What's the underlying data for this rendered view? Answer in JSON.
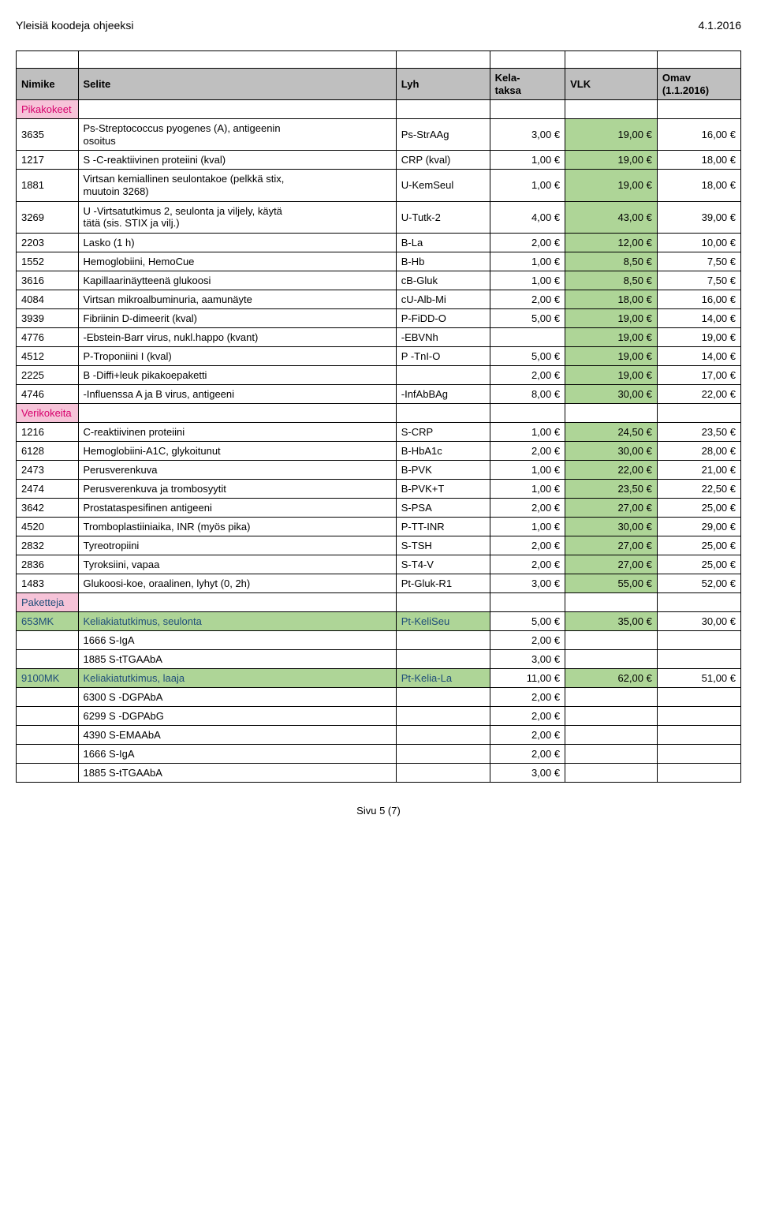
{
  "header": {
    "left": "Yleisiä koodeja ohjeeksi",
    "right": "4.1.2016"
  },
  "thead": {
    "nimike": "Nimike",
    "selite": "Selite",
    "lyh": "Lyh",
    "kela_l1": "Kela-",
    "kela_l2": "taksa",
    "vlk": "VLK",
    "omav_l1": "Omav",
    "omav_l2": "(1.1.2016)"
  },
  "sections": {
    "pikakokeet": "Pikakokeet",
    "verikokeita": "Verikokeita",
    "paketteja": "Paketteja"
  },
  "rows": [
    {
      "code": "3635",
      "name_l1": "Ps-Streptococcus pyogenes (A), antigeenin",
      "name_l2": "osoitus",
      "lyh": "Ps-StrAAg",
      "kela": "3,00 €",
      "vlk": "19,00 €",
      "omav": "16,00 €"
    },
    {
      "code": "1217",
      "name": "S -C-reaktiivinen proteiini (kval)",
      "lyh": "CRP (kval)",
      "kela": "1,00 €",
      "vlk": "19,00 €",
      "omav": "18,00 €"
    },
    {
      "code": "1881",
      "name_l1": "Virtsan kemiallinen seulontakoe (pelkkä stix,",
      "name_l2": "muutoin 3268)",
      "lyh": "U-KemSeul",
      "kela": "1,00 €",
      "vlk": "19,00 €",
      "omav": "18,00 €"
    },
    {
      "code": "3269",
      "name_l1": "U -Virtsatutkimus 2, seulonta ja viljely, käytä",
      "name_l2": "tätä (sis. STIX ja vilj.)",
      "lyh": "U-Tutk-2",
      "kela": "4,00 €",
      "vlk": "43,00 €",
      "omav": "39,00 €"
    },
    {
      "code": "2203",
      "name": "Lasko (1 h)",
      "lyh": "B-La",
      "kela": "2,00 €",
      "vlk": "12,00 €",
      "omav": "10,00 €"
    },
    {
      "code": "1552",
      "name": "Hemoglobiini, HemoCue",
      "lyh": "B-Hb",
      "kela": "1,00 €",
      "vlk": "8,50 €",
      "omav": "7,50 €"
    },
    {
      "code": "3616",
      "name": "Kapillaarinäytteenä glukoosi",
      "lyh": "cB-Gluk",
      "kela": "1,00 €",
      "vlk": "8,50 €",
      "omav": "7,50 €"
    },
    {
      "code": "4084",
      "name": "Virtsan mikroalbuminuria, aamunäyte",
      "lyh": "cU-Alb-Mi",
      "kela": "2,00 €",
      "vlk": "18,00 €",
      "omav": "16,00 €"
    },
    {
      "code": "3939",
      "name": "Fibriinin D-dimeerit (kval)",
      "lyh": "P-FiDD-O",
      "kela": "5,00 €",
      "vlk": "19,00 €",
      "omav": "14,00 €"
    },
    {
      "code": "4776",
      "name": "-Ebstein-Barr virus, nukl.happo (kvant)",
      "lyh": "-EBVNh",
      "kela": "",
      "vlk": "19,00 €",
      "omav": "19,00 €"
    },
    {
      "code": "4512",
      "name": "P-Troponiini I (kval)",
      "lyh": "P -TnI-O",
      "kela": "5,00 €",
      "vlk": "19,00 €",
      "omav": "14,00 €"
    },
    {
      "code": "2225",
      "name": "B -Diffi+leuk pikakoepaketti",
      "lyh": "",
      "kela": "2,00 €",
      "vlk": "19,00 €",
      "omav": "17,00 €"
    },
    {
      "code": "4746",
      "name": "-Influenssa A ja B virus, antigeeni",
      "lyh": "-InfAbBAg",
      "kela": "8,00 €",
      "vlk": "30,00 €",
      "omav": "22,00 €"
    }
  ],
  "rows2": [
    {
      "code": "1216",
      "name": "C-reaktiivinen proteiini",
      "lyh": "S-CRP",
      "kela": "1,00 €",
      "vlk": "24,50 €",
      "omav": "23,50 €"
    },
    {
      "code": "6128",
      "name": "Hemoglobiini-A1C, glykoitunut",
      "lyh": "B-HbA1c",
      "kela": "2,00 €",
      "vlk": "30,00 €",
      "omav": "28,00 €"
    },
    {
      "code": "2473",
      "name": "Perusverenkuva",
      "lyh": "B-PVK",
      "kela": "1,00 €",
      "vlk": "22,00 €",
      "omav": "21,00 €"
    },
    {
      "code": "2474",
      "name": "Perusverenkuva ja trombosyytit",
      "lyh": "B-PVK+T",
      "kela": "1,00 €",
      "vlk": "23,50 €",
      "omav": "22,50 €"
    },
    {
      "code": "3642",
      "name": "Prostataspesifinen antigeeni",
      "lyh": "S-PSA",
      "kela": "2,00 €",
      "vlk": "27,00 €",
      "omav": "25,00 €"
    },
    {
      "code": "4520",
      "name": "Tromboplastiiniaika, INR (myös pika)",
      "lyh": "P-TT-INR",
      "kela": "1,00 €",
      "vlk": "30,00 €",
      "omav": "29,00 €"
    },
    {
      "code": "2832",
      "name": "Tyreotropiini",
      "lyh": "S-TSH",
      "kela": "2,00 €",
      "vlk": "27,00 €",
      "omav": "25,00 €"
    },
    {
      "code": "2836",
      "name": "Tyroksiini, vapaa",
      "lyh": "S-T4-V",
      "kela": "2,00 €",
      "vlk": "27,00 €",
      "omav": "25,00 €"
    },
    {
      "code": "1483",
      "name": "Glukoosi-koe, oraalinen, lyhyt (0, 2h)",
      "lyh": "Pt-Gluk-R1",
      "kela": "3,00 €",
      "vlk": "55,00 €",
      "omav": "52,00 €"
    }
  ],
  "pkg1": {
    "code": "653MK",
    "name": "Keliakiatutkimus, seulonta",
    "lyh": "Pt-KeliSeu",
    "kela": "5,00 €",
    "vlk": "35,00 €",
    "omav": "30,00 €"
  },
  "pkg1_sub": [
    {
      "name": "1666 S-IgA",
      "kela": "2,00 €"
    },
    {
      "name": "1885 S-tTGAAbA",
      "kela": "3,00 €"
    }
  ],
  "pkg2": {
    "code": "9100MK",
    "name": "Keliakiatutkimus, laaja",
    "lyh": "Pt-Kelia-La",
    "kela": "11,00 €",
    "vlk": "62,00 €",
    "omav": "51,00 €"
  },
  "pkg2_sub": [
    {
      "name": "6300 S -DGPAbA",
      "kela": "2,00 €"
    },
    {
      "name": "6299 S -DGPAbG",
      "kela": "2,00 €"
    },
    {
      "name": "4390 S-EMAAbA",
      "kela": "2,00 €"
    },
    {
      "name": "1666 S-IgA",
      "kela": "2,00 €"
    },
    {
      "name": "1885 S-tTGAAbA",
      "kela": "3,00 €"
    }
  ],
  "footer": "Sivu 5 (7)",
  "colors": {
    "green": "#aed597",
    "grey": "#bfbfbf",
    "pink": "#f6c3d8",
    "pinktxt": "#d6006c",
    "bluetxt": "#1f4e79"
  }
}
